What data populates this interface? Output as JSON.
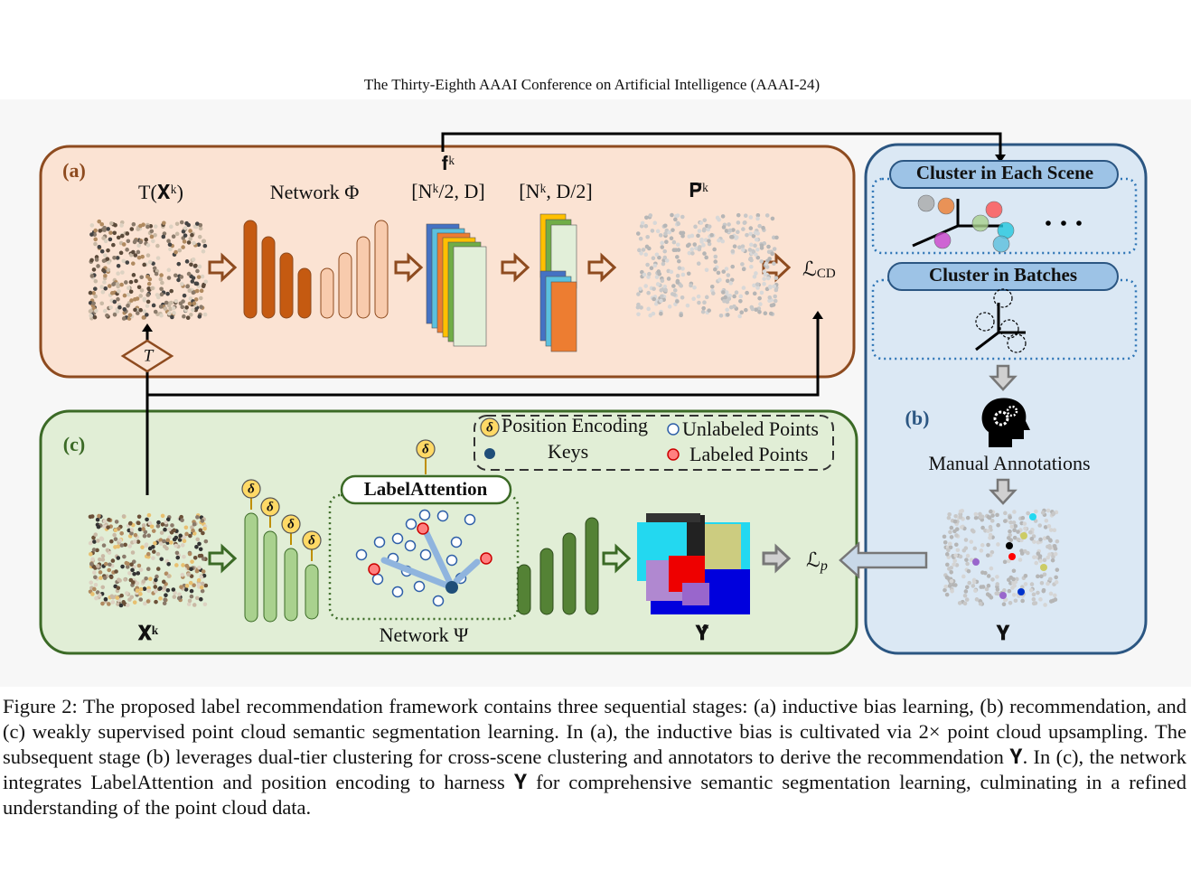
{
  "header": {
    "title": "The Thirty-Eighth AAAI Conference on Artificial Intelligence (AAAI-24)"
  },
  "figure": {
    "panel_a": {
      "label": "(a)",
      "input": "T(𝐗ᵏ)",
      "network": "Network Φ",
      "feature": "𝐟ᵏ",
      "shape_1": "[Nᵏ/2, D]",
      "shape_2": "[Nᵏ, D/2]",
      "output": "𝐏̄ᵏ",
      "loss_symbol": "ℒ",
      "loss_subscript": "CD",
      "transform": "T"
    },
    "panel_b": {
      "label": "(b)",
      "cluster_scene": "Cluster in Each Scene",
      "cluster_batches": "Cluster in Batches",
      "annotations": "Manual Annotations",
      "output": "𝐘"
    },
    "panel_c": {
      "label": "(c)",
      "delta": "δ",
      "legend": {
        "position_encoding": "Position Encoding",
        "unlabeled": "Unlabeled Points",
        "keys": "Keys",
        "labeled": "Labeled Points"
      },
      "attention": "LabelAttention",
      "network": "Network Ψ",
      "input": "𝐗ᵏ",
      "output": "𝐘̂",
      "loss_symbol": "ℒ",
      "loss_subscript": "p"
    }
  },
  "caption": "Figure 2: The proposed label recommendation framework contains three sequential stages: (a) inductive bias learning, (b) recommendation, and (c) weakly supervised point cloud semantic segmentation learning. In (a), the inductive bias is cultivated via 2× point cloud upsampling. The subsequent stage (b) leverages dual-tier clustering for cross-scene clustering and annotators to derive the recommendation 𝐘. In (c), the network integrates LabelAttention and position encoding to harness 𝐘 for comprehensive semantic segmentation learning, culminating in a refined understanding of the point cloud data."
}
